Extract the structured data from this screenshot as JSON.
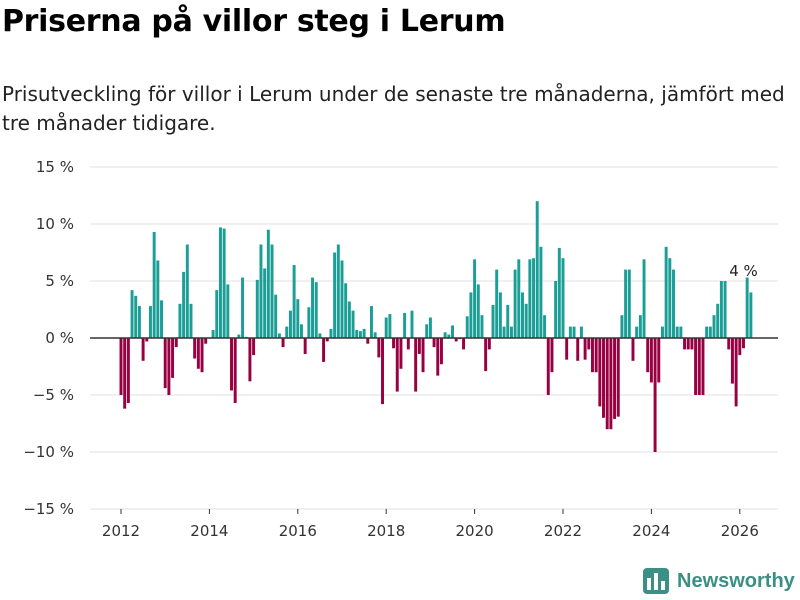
{
  "title": "Priserna på villor steg i Lerum",
  "subtitle": "Prisutveckling för villor i Lerum under de senaste tre månaderna, jämfört med tre månader tidigare.",
  "brand": "Newsworthy",
  "colors": {
    "positive": "#1a9e96",
    "negative": "#990042",
    "grid": "#e0e0e0",
    "zero_line": "#333333",
    "brand": "#3b8f84"
  },
  "chart_data": {
    "type": "bar",
    "title": "Priserna på villor steg i Lerum",
    "xlabel": "",
    "ylabel": "",
    "ylim": [
      -15,
      15
    ],
    "y_ticks": [
      15,
      10,
      5,
      0,
      -5,
      -10,
      -15
    ],
    "y_tick_labels": [
      "15 %",
      "10 %",
      "5 %",
      "0 %",
      "−5 %",
      "−10 %",
      "−15 %"
    ],
    "x_ticks": [
      2012,
      2014,
      2016,
      2018,
      2020,
      2022,
      2024,
      2026
    ],
    "x_tick_labels": [
      "2012",
      "2014",
      "2016",
      "2018",
      "2020",
      "2022",
      "2024",
      "2026"
    ],
    "start": [
      2012,
      1
    ],
    "frequency": "monthly",
    "unit": "%",
    "values": [
      -5.0,
      -6.2,
      -5.7,
      4.2,
      3.7,
      2.8,
      -2.0,
      -0.3,
      2.8,
      9.3,
      6.8,
      3.3,
      -4.4,
      -5.0,
      -3.5,
      -0.8,
      3.0,
      5.8,
      8.2,
      3.0,
      -1.8,
      -2.7,
      -3.0,
      -0.5,
      0.0,
      0.7,
      4.2,
      9.7,
      9.6,
      4.7,
      -4.6,
      -5.7,
      0.3,
      5.3,
      0.1,
      -3.8,
      -1.5,
      5.1,
      8.2,
      6.1,
      9.5,
      8.2,
      3.8,
      0.4,
      -0.8,
      1.0,
      2.4,
      6.4,
      3.4,
      1.2,
      -1.4,
      2.7,
      5.3,
      4.9,
      0.4,
      -2.1,
      -0.3,
      0.8,
      7.5,
      8.2,
      6.8,
      4.8,
      3.2,
      2.4,
      0.7,
      0.6,
      0.8,
      -0.5,
      2.8,
      0.5,
      -1.7,
      -5.8,
      1.8,
      2.1,
      -0.9,
      -4.7,
      -2.7,
      2.2,
      -1.0,
      2.4,
      -4.7,
      -1.4,
      -3.0,
      1.2,
      1.8,
      -0.8,
      -3.3,
      -2.3,
      0.5,
      0.3,
      1.1,
      -0.3,
      -0.1,
      -1.0,
      1.9,
      4.0,
      6.9,
      4.7,
      2.0,
      -2.9,
      -1.0,
      2.9,
      6.0,
      4.0,
      1.0,
      2.9,
      1.0,
      6.0,
      6.9,
      4.0,
      3.0,
      6.9,
      7.0,
      12.0,
      8.0,
      2.0,
      -5.0,
      -3.0,
      5.0,
      7.9,
      7.0,
      -1.9,
      1.0,
      1.0,
      -2.0,
      1.0,
      -1.9,
      -1.0,
      -3.0,
      -3.0,
      -6.0,
      -7.0,
      -8.0,
      -8.0,
      -7.1,
      -6.9,
      2.0,
      6.0,
      6.0,
      -2.0,
      1.0,
      2.0,
      6.9,
      -3.0,
      -3.9,
      -10.0,
      -3.9,
      1.0,
      8.0,
      7.0,
      6.0,
      1.0,
      1.0,
      -1.0,
      -1.0,
      -1.0,
      -5.0,
      -5.0,
      -5.0,
      1.0,
      1.0,
      2.0,
      3.0,
      5.0,
      5.0,
      -1.0,
      -4.0,
      -6.0,
      -1.5,
      -0.9,
      5.3,
      4.0
    ],
    "annotations": [
      {
        "label": "4 %",
        "date": "2026-02",
        "value": 4.0
      }
    ]
  }
}
